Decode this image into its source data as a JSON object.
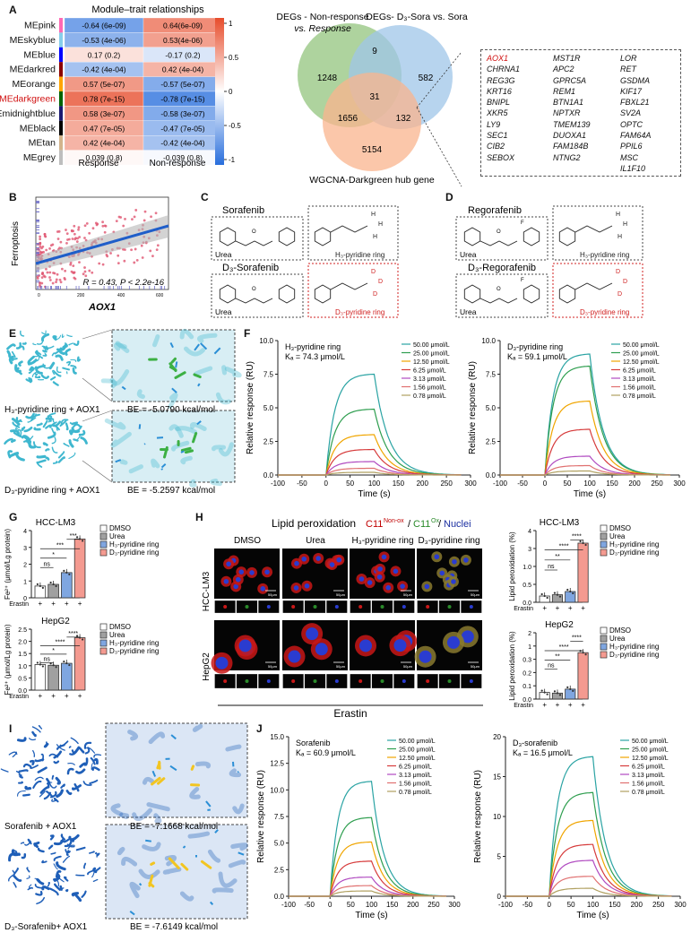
{
  "panels": {
    "A": {
      "letter": "A",
      "heatmap": {
        "title": "Module–trait relationships",
        "columns": [
          "Response",
          "Non-response"
        ],
        "rows": [
          {
            "name": "MEpink",
            "color": "#ff69b4",
            "cells": [
              "-0.64 (6e-09)",
              "0.64(6e-09)"
            ],
            "values": [
              -0.64,
              0.64
            ]
          },
          {
            "name": "MEskyblue",
            "color": "#87ceeb",
            "cells": [
              "-0.53 (4e-06)",
              "0.53(4e-06)"
            ],
            "values": [
              -0.53,
              0.53
            ]
          },
          {
            "name": "MEblue",
            "color": "#0000ff",
            "cells": [
              "0.17 (0.2)",
              "-0.17 (0.2)"
            ],
            "values": [
              0.17,
              -0.17
            ]
          },
          {
            "name": "MEdarkred",
            "color": "#8b0000",
            "cells": [
              "-0.42 (4e-04)",
              "0.42 (4e-04)"
            ],
            "values": [
              -0.42,
              0.42
            ]
          },
          {
            "name": "MEorange",
            "color": "#ffa500",
            "cells": [
              "0.57 (5e-07)",
              "-0.57 (5e-07)"
            ],
            "values": [
              0.57,
              -0.57
            ]
          },
          {
            "name": "MEdarkgreen",
            "color": "#006400",
            "cells": [
              "0.78 (7e-15)",
              "-0.78 (7e-15)"
            ],
            "values": [
              0.78,
              -0.78
            ],
            "highlight": true
          },
          {
            "name": "MEmidnightblue",
            "color": "#191970",
            "cells": [
              "0.58 (3e-07)",
              "-0.58 (3e-07)"
            ],
            "values": [
              0.58,
              -0.58
            ]
          },
          {
            "name": "MEblack",
            "color": "#000000",
            "cells": [
              "0.47 (7e-05)",
              "-0.47 (7e-05)"
            ],
            "values": [
              0.47,
              -0.47
            ]
          },
          {
            "name": "MEtan",
            "color": "#d2b48c",
            "cells": [
              "0.42 (4e-04)",
              "-0.42 (4e-04)"
            ],
            "values": [
              0.42,
              -0.42
            ]
          },
          {
            "name": "MEgrey",
            "color": "#bebebe",
            "cells": [
              "0.039 (0.8)",
              "-0.039 (0.8)"
            ],
            "values": [
              0.039,
              -0.039
            ]
          }
        ],
        "scale_ticks": [
          "1",
          "0.5",
          "0",
          "-0.5",
          "-1"
        ]
      },
      "venn": {
        "set1": [
          "DEGs - Non-response",
          "vs. Response"
        ],
        "set2": "DEGs- D₃-Sora vs. Sora",
        "set3": "WGCNA-Darkgreen hub gene",
        "counts": {
          "only1": "1248",
          "only2": "582",
          "only3": "5154",
          "s12": "9",
          "s13": "1656",
          "s23": "132",
          "all": "31"
        }
      },
      "gene_list": {
        "col1": [
          "AOX1",
          "CHRNA1",
          "REG3G",
          "KRT16",
          "BNIPL",
          "XKR5",
          "LY9",
          "SEC1",
          "CIB2",
          "SEBOX"
        ],
        "col2": [
          "MST1R",
          "APC2",
          "GPRC5A",
          "REM1",
          "BTN1A1",
          "NPTXR",
          "TMEM139",
          "DUOXA1",
          "FAM184B",
          "NTNG2"
        ],
        "col3": [
          "LOR",
          "RET",
          "GSDMA",
          "KIF17",
          "FBXL21",
          "SV2A",
          "OPTC",
          "FAM64A",
          "PPIL6",
          "MSC",
          "IL1F10"
        ]
      }
    },
    "B": {
      "letter": "B",
      "ylabel": "Ferroptosis",
      "xlabel": "AOX1",
      "stat": "R = 0.43, P < 2.2e-16",
      "x_ticks": [
        "0",
        "200",
        "400",
        "600"
      ]
    },
    "C": {
      "letter": "C",
      "name1": "Sorafenib",
      "name2": "D₃-Sorafenib",
      "urea": "Urea",
      "ring1": "H₃-pyridine ring",
      "ring2": "D₃-pyridine ring"
    },
    "D": {
      "letter": "D",
      "name1": "Regorafenib",
      "name2": "D₃-Regorafenib",
      "urea": "Urea",
      "ring1": "H₃-pyridine ring",
      "ring2": "D₃-pyridine ring"
    },
    "E": {
      "letter": "E",
      "dock1": "H₃-pyridine ring + AOX1",
      "be1": "BE = -5.0790 kcal/mol",
      "dock2": "D₃-pyridine ring + AOX1",
      "be2": "BE = -5.2597 kcal/mol"
    },
    "F": {
      "letter": "F",
      "plots": [
        {
          "title": "H₃-pyridine ring",
          "kd": "Kₐ = 74.3 μmol/L",
          "peaks": [
            7.5,
            4.9,
            3.0,
            1.9,
            1.0,
            0.5,
            0.2
          ]
        },
        {
          "title": "D₃-pyridine ring",
          "kd": "Kₐ = 59.1 μmol/L",
          "peaks": [
            9.0,
            8.1,
            5.5,
            3.4,
            1.4,
            0.7,
            0.3
          ]
        }
      ],
      "ylabel": "Relative response (RU)",
      "xlabel": "Time (s)",
      "x_ticks": [
        "-100",
        "-50",
        "0",
        "50",
        "100",
        "150",
        "200",
        "250",
        "300"
      ],
      "y_ticks": [
        "0.0",
        "2.5",
        "5.0",
        "7.5",
        "10.0"
      ],
      "concentrations": [
        "50.00 μmol/L",
        "25.00 μmol/L",
        "12.50 μmol/L",
        "6.25 μmol/L",
        "3.13 μmol/L",
        "1.56 μmol/L",
        "0.78 μmol/L"
      ],
      "colors": [
        "#2aa3a3",
        "#2e9e4f",
        "#f0a500",
        "#d63b3b",
        "#b04ac0",
        "#e07070",
        "#b0a060"
      ]
    },
    "G": {
      "letter": "G",
      "ylabel": "Fe²⁺ (μmol/Lg protein)",
      "legend": [
        "DMSO",
        "Urea",
        "H₃-pyridine ring",
        "D₃-pyridine ring"
      ],
      "erastin": "Erastin",
      "signs": [
        "+",
        "+",
        "+",
        "+"
      ],
      "charts": [
        {
          "title": "HCC-LM3",
          "values": [
            0.7,
            0.8,
            1.5,
            3.5
          ],
          "ylim": [
            0,
            4
          ],
          "ticks": [
            "0",
            "1",
            "2",
            "3",
            "4"
          ],
          "sig": [
            "ns",
            "*",
            "***",
            "***"
          ]
        },
        {
          "title": "HepG2",
          "values": [
            1.05,
            1.02,
            1.1,
            2.15
          ],
          "ylim": [
            0,
            2.5
          ],
          "ticks": [
            "0.0",
            "0.5",
            "1.0",
            "1.5",
            "2.0",
            "2.5"
          ],
          "sig": [
            "ns",
            "*",
            "****",
            "****"
          ]
        }
      ]
    },
    "H": {
      "letter": "H",
      "title": "Lipid peroxidation",
      "stain_a": "C11",
      "stain_a_sup": "Non-ox",
      "stain_b": "C11",
      "stain_b_sup": "Ox",
      "stain_c": "Nuclei",
      "columns": [
        "DMSO",
        "Urea",
        "H₃-pyridine ring",
        "D₃-pyridine ring"
      ],
      "rows": [
        "HCC-LM3",
        "HepG2"
      ],
      "scale": "50μm",
      "footer": "Erastin",
      "charts": [
        {
          "title": "HCC-LM3",
          "values": [
            0.35,
            0.42,
            0.6,
            3.3
          ],
          "ticks": [
            "0.0",
            "0.5",
            "1.0",
            "3",
            "4"
          ],
          "sig": [
            "ns",
            "**",
            "****",
            "****"
          ]
        },
        {
          "title": "HepG2",
          "values": [
            0.2,
            0.18,
            0.3,
            1.4
          ],
          "ticks": [
            "0.0",
            "0.1",
            "0.2",
            "0.3",
            "1",
            "2"
          ],
          "sig": [
            "ns",
            "**",
            "****",
            "****"
          ]
        }
      ],
      "ylabel": "Lipid peroxidation (%)",
      "legend": [
        "DMSO",
        "Urea",
        "H₃-pyridine ring",
        "D₃-pyridine ring"
      ],
      "erastin": "Erastin"
    },
    "I": {
      "letter": "I",
      "dock1": "Sorafenib + AOX1",
      "be1": "BE = -7.1668 kcal/mol",
      "dock2": "D₃-Sorafenib+ AOX1",
      "be2": "BE = -7.6149 kcal/mol"
    },
    "J": {
      "letter": "J",
      "plots": [
        {
          "title": "Sorafenib",
          "kd": "Kₐ = 60.9 μmol/L",
          "peaks": [
            10.8,
            7.4,
            5.1,
            3.3,
            1.8,
            1.0,
            0.5
          ],
          "ylim": 15,
          "yticks": [
            "0.0",
            "2.5",
            "5.0",
            "7.5",
            "10.0",
            "12.5",
            "15.0"
          ]
        },
        {
          "title": "D₃-sorafenib",
          "kd": "Kₐ = 16.5 μmol/L",
          "peaks": [
            17.5,
            13.0,
            9.5,
            6.5,
            4.5,
            2.5,
            1.0
          ],
          "ylim": 20,
          "yticks": [
            "0",
            "5",
            "10",
            "15",
            "20"
          ]
        }
      ],
      "ylabel": "Relative response (RU)",
      "xlabel": "Time (s)",
      "x_ticks": [
        "-100",
        "-50",
        "0",
        "50",
        "100",
        "150",
        "200",
        "250",
        "300"
      ],
      "concentrations": [
        "50.00 μmol/L",
        "25.00 μmol/L",
        "12.50 μmol/L",
        "6.25 μmol/L",
        "3.13 μmol/L",
        "1.56 μmol/L",
        "0.78 μmol/L"
      ],
      "colors": [
        "#2aa3a3",
        "#2e9e4f",
        "#f0a500",
        "#d63b3b",
        "#b04ac0",
        "#e07070",
        "#b0a060"
      ]
    }
  }
}
